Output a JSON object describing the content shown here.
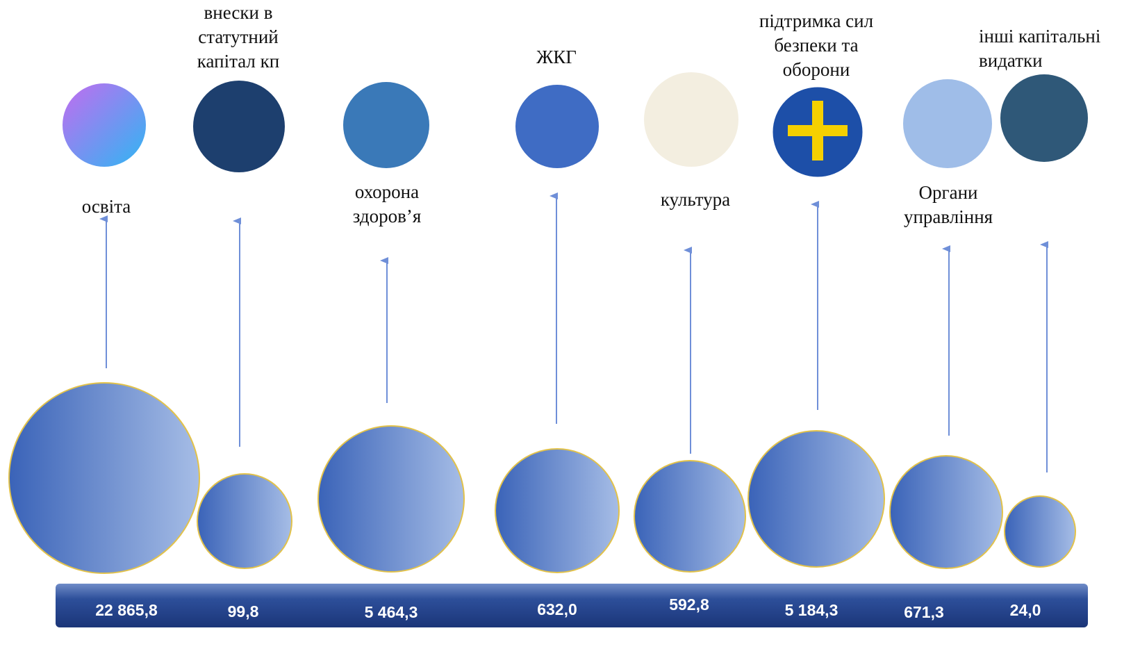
{
  "items": [
    {
      "label": [
        "освіта"
      ],
      "value": "22 865,8"
    },
    {
      "label": [
        "внески в",
        "статутний",
        "капітал кп"
      ],
      "value": "99,8"
    },
    {
      "label": [
        "охорона",
        "здоров’я"
      ],
      "value": "5 464,3"
    },
    {
      "label": [
        "ЖКГ"
      ],
      "value": "632,0"
    },
    {
      "label": [
        "культура"
      ],
      "value": "592,8"
    },
    {
      "label": [
        "підтримка сил",
        "безпеки та",
        "оборони"
      ],
      "value": "5 184,3"
    },
    {
      "label": [
        "Органи",
        "управління"
      ],
      "value": "671,3"
    },
    {
      "label": [
        "інші капітальні",
        "видатки"
      ],
      "value": "24,0"
    }
  ]
}
